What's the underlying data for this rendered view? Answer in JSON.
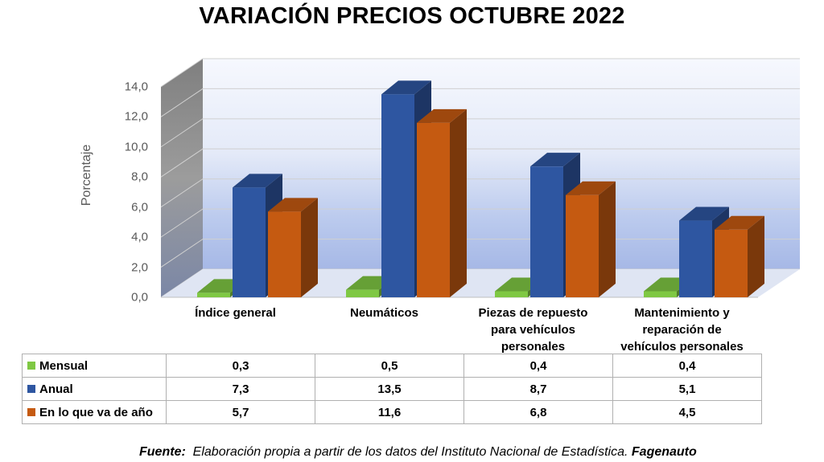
{
  "title": "VARIACIÓN PRECIOS OCTUBRE 2022",
  "source": {
    "label": "Fuente:",
    "text": "Elaboración propia a partir de los datos del Instituto Nacional de Estadística.",
    "brand": "Fagenauto"
  },
  "chart_data": {
    "type": "bar",
    "title": "VARIACIÓN PRECIOS OCTUBRE 2022",
    "ylabel": "Porcentaje",
    "xlabel": "",
    "ylim": [
      0,
      14
    ],
    "yticks": [
      "0,0",
      "2,0",
      "4,0",
      "6,0",
      "8,0",
      "10,0",
      "12,0",
      "14,0"
    ],
    "categories": [
      "Índice general",
      "Neumáticos",
      "Piezas de repuesto para vehículos personales",
      "Mantenimiento y reparación de vehículos personales"
    ],
    "category_lines": [
      [
        "Índice general"
      ],
      [
        "Neumáticos"
      ],
      [
        "Piezas de repuesto",
        "para vehículos",
        "personales"
      ],
      [
        "Mantenimiento y",
        "reparación de",
        "vehículos personales"
      ]
    ],
    "series": [
      {
        "name": "Mensual",
        "values": [
          0.3,
          0.5,
          0.4,
          0.4
        ],
        "labels": [
          "0,3",
          "0,5",
          "0,4",
          "0,4"
        ],
        "color": "#7fc843"
      },
      {
        "name": "Anual",
        "values": [
          7.3,
          13.5,
          8.7,
          5.1
        ],
        "labels": [
          "7,3",
          "13,5",
          "8,7",
          "5,1"
        ],
        "color": "#2e56a1"
      },
      {
        "name": "En lo que va de año",
        "values": [
          5.7,
          11.6,
          6.8,
          4.5
        ],
        "labels": [
          "5,7",
          "11,6",
          "6,8",
          "4,5"
        ],
        "color": "#c55a11"
      }
    ],
    "grid": true,
    "legend": "table-below",
    "style": "3d-clustered-column"
  }
}
